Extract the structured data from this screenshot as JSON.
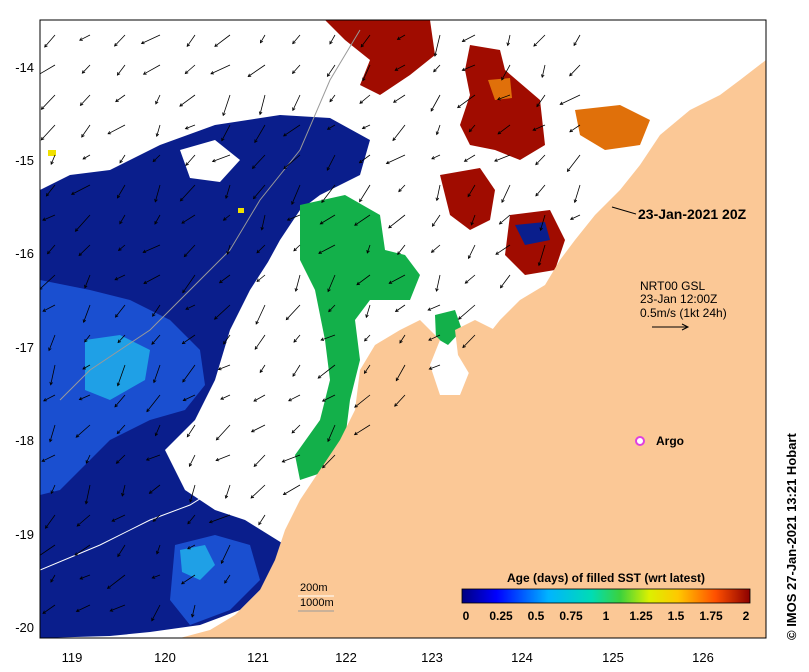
{
  "map": {
    "axes": {
      "x_ticks": [
        "119",
        "120",
        "121",
        "122",
        "123",
        "124",
        "125",
        "126"
      ],
      "y_ticks": [
        "-14",
        "-15",
        "-16",
        "-17",
        "-18",
        "-19",
        "-20"
      ]
    },
    "date_label": "23-Jan-2021 20Z",
    "current_legend": {
      "line1": "NRT00 GSL",
      "line2": "23-Jan 12:00Z",
      "line3": "0.5m/s (1kt 24h)"
    },
    "argo_label": "Argo",
    "isobaths": {
      "shallow": "200m",
      "deep": "1000m"
    },
    "credit": "© IMOS 27-Jan-2021 13:21 Hobart",
    "colorbar": {
      "title": "Age (days) of filled SST (wrt latest)",
      "ticks": [
        "0",
        "0.25",
        "0.5",
        "0.75",
        "1",
        "1.25",
        "1.5",
        "1.75",
        "2"
      ]
    },
    "colors": {
      "land": "#fbc896",
      "ocean_gap": "#ffffff",
      "dark_blue": "#0a1e8c",
      "mid_blue": "#1446c8",
      "cyan": "#1fa0e6",
      "green": "#13b04a",
      "orange": "#e0700a",
      "dark_red": "#a00c00",
      "argo": "#e040e0"
    }
  }
}
